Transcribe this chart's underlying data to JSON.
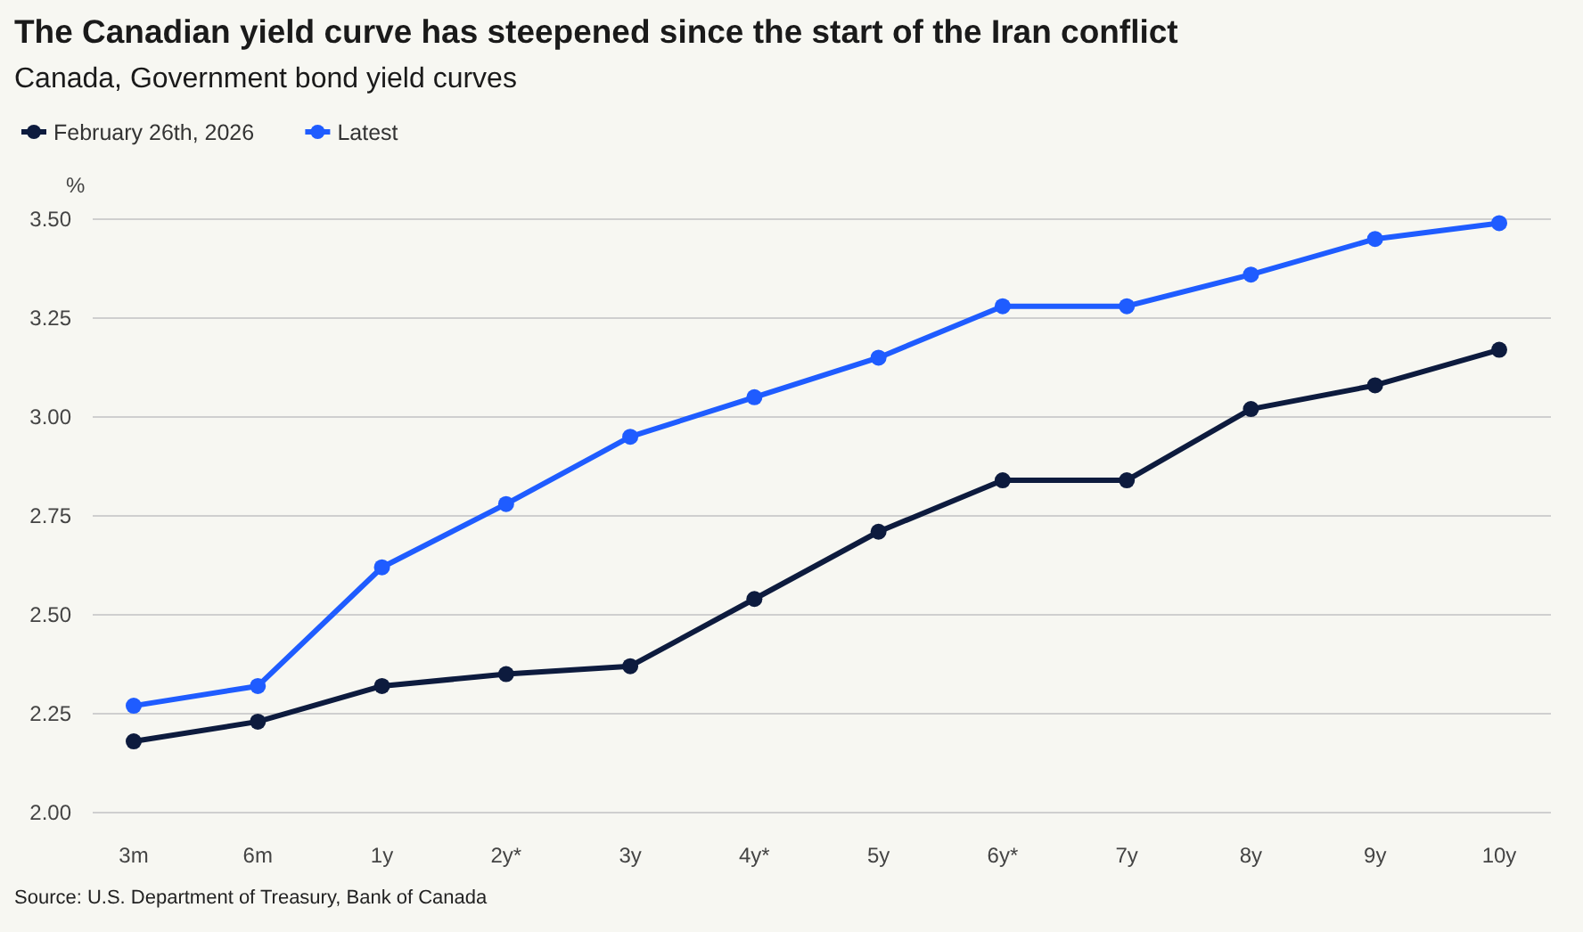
{
  "chart_data": {
    "type": "line",
    "title": "The Canadian yield curve has steepened since the start of the Iran conflict",
    "subtitle": "Canada, Government bond yield curves",
    "ylabel": "%",
    "categories": [
      "3m",
      "6m",
      "1y",
      "2y*",
      "3y",
      "4y*",
      "5y",
      "6y*",
      "7y",
      "8y",
      "9y",
      "10y"
    ],
    "series": [
      {
        "name": "February 26th, 2026",
        "color": "#0d1b3e",
        "values": [
          2.18,
          2.23,
          2.32,
          2.35,
          2.37,
          2.54,
          2.71,
          2.84,
          2.84,
          3.02,
          3.08,
          3.17
        ]
      },
      {
        "name": "Latest",
        "color": "#1f5cff",
        "values": [
          2.27,
          2.32,
          2.62,
          2.78,
          2.95,
          3.05,
          3.15,
          3.28,
          3.28,
          3.36,
          3.45,
          3.49
        ]
      }
    ],
    "ylim": [
      2.0,
      3.5
    ],
    "yticks": [
      {
        "value": 2.0,
        "label": "2.00"
      },
      {
        "value": 2.25,
        "label": "2.25"
      },
      {
        "value": 2.5,
        "label": "2.50"
      },
      {
        "value": 2.75,
        "label": "2.75"
      },
      {
        "value": 3.0,
        "label": "3.00"
      },
      {
        "value": 3.25,
        "label": "3.25"
      },
      {
        "value": 3.5,
        "label": "3.50"
      }
    ],
    "grid": "y",
    "legend": "top left",
    "marker": "circle",
    "line_style": "solid",
    "annotations": [
      "Source: U.S. Department of Treasury, Bank of Canada"
    ]
  }
}
